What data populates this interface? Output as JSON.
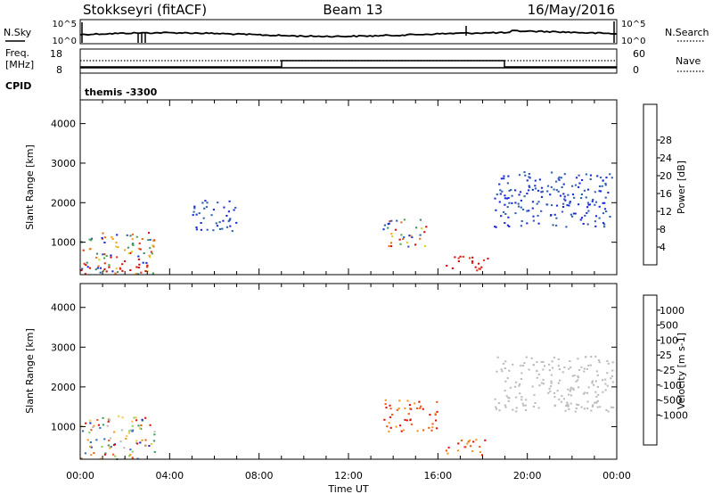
{
  "header": {
    "station": "Stokkseyri (fitACF)",
    "beam": "Beam 13",
    "date": "16/May/2016"
  },
  "params": {
    "nsky_label": "N.Sky",
    "nsearch_label": "N.Search",
    "freq_label_1": "Freq.",
    "freq_label_2": "[MHz]",
    "nave_label": "Nave",
    "cpid_label": "CPID",
    "cpid_value": "themis -3300",
    "noise_ticks_left": [
      "10^5",
      "10^0"
    ],
    "noise_ticks_right": [
      "10^5",
      "10^0"
    ],
    "freq_ticks": [
      "18",
      "8"
    ],
    "nave_ticks": [
      "60",
      "0"
    ]
  },
  "colors": {
    "power": [
      "#1a2bd6",
      "#2f5fb0",
      "#3f8a6a",
      "#4aa84a",
      "#d6d21e",
      "#f3a51a",
      "#ec6b16",
      "#e3331a",
      "#d40d0d"
    ],
    "velocity": [
      "#e01010",
      "#ef5a14",
      "#f39a1c",
      "#f5c84a",
      "#bcbcbc",
      "#bcbcbc",
      "#8fcf55",
      "#3d9a5a",
      "#3a6bb8",
      "#2030c8"
    ]
  },
  "chart_data": [
    {
      "type": "heatmap",
      "title": "Power",
      "xlabel": "Time UT",
      "ylabel": "Slant Range [km]",
      "x_ticks": [
        "00:00",
        "04:00",
        "08:00",
        "12:00",
        "16:00",
        "20:00",
        "00:00"
      ],
      "y_ticks": [
        1000,
        2000,
        3000,
        4000
      ],
      "colorbar": {
        "label": "Power [dB]",
        "ticks": [
          4,
          8,
          12,
          16,
          20,
          24,
          28
        ]
      },
      "features": [
        {
          "t0": 0.0,
          "t1": 3.3,
          "r0": 200,
          "r1": 1300,
          "level": "mixed"
        },
        {
          "t0": 1.0,
          "t1": 3.0,
          "r0": 250,
          "r1": 500,
          "level": "high"
        },
        {
          "t0": 16.3,
          "t1": 18.2,
          "r0": 300,
          "r1": 700,
          "level": "high"
        },
        {
          "t0": 18.5,
          "t1": 23.8,
          "r0": 1400,
          "r1": 2800,
          "level": "low"
        },
        {
          "t0": 5.0,
          "t1": 7.0,
          "r0": 1300,
          "r1": 2100,
          "level": "low"
        },
        {
          "t0": 13.5,
          "t1": 15.5,
          "r0": 900,
          "r1": 1600,
          "level": "mixed"
        }
      ]
    },
    {
      "type": "heatmap",
      "title": "Velocity",
      "xlabel": "Time UT",
      "ylabel": "Slant Range [km]",
      "x_ticks": [
        "00:00",
        "04:00",
        "08:00",
        "12:00",
        "16:00",
        "20:00",
        "00:00"
      ],
      "y_ticks": [
        1000,
        2000,
        3000,
        4000
      ],
      "colorbar": {
        "label": "Velocity [m s-1]",
        "ticks": [
          "1000",
          "500",
          "100",
          "25",
          "-25",
          "-100",
          "-500",
          "-1000"
        ]
      },
      "features": [
        {
          "t0": 0.0,
          "t1": 3.3,
          "r0": 200,
          "r1": 1300,
          "level": "mixed"
        },
        {
          "t0": 13.5,
          "t1": 16.0,
          "r0": 900,
          "r1": 1700,
          "level": "away"
        },
        {
          "t0": 16.3,
          "t1": 18.2,
          "r0": 300,
          "r1": 700,
          "level": "away"
        },
        {
          "t0": 18.5,
          "t1": 23.8,
          "r0": 1400,
          "r1": 2800,
          "level": "grey"
        }
      ]
    }
  ]
}
